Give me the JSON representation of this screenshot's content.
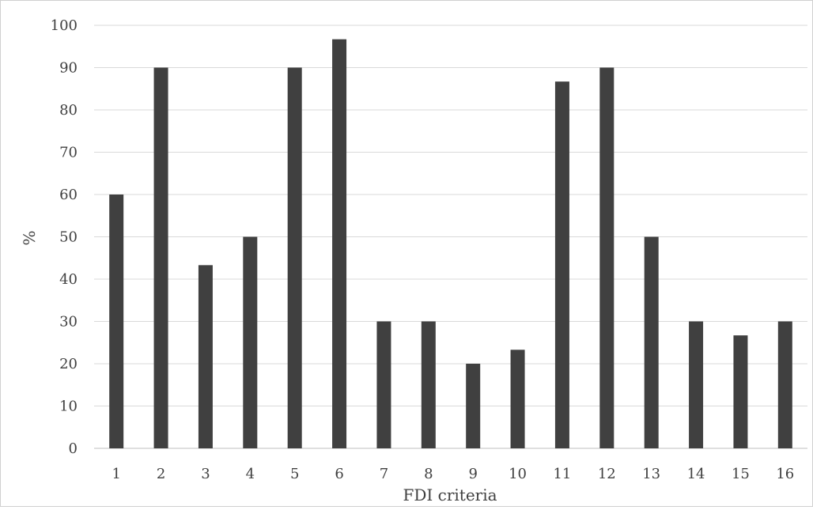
{
  "chart_data": {
    "type": "bar",
    "categories": [
      "1",
      "2",
      "3",
      "4",
      "5",
      "6",
      "7",
      "8",
      "9",
      "10",
      "11",
      "12",
      "13",
      "14",
      "15",
      "16"
    ],
    "values": [
      60,
      90,
      43.3,
      50,
      90,
      96.7,
      30,
      30,
      20,
      23.3,
      86.7,
      90,
      50,
      30,
      26.7,
      30
    ],
    "xlabel": "FDI criteria",
    "ylabel": "%",
    "ylim": [
      0,
      100
    ],
    "yticks": [
      0,
      10,
      20,
      30,
      40,
      50,
      60,
      70,
      80,
      90,
      100
    ],
    "grid": true,
    "legend": "none",
    "bar_color": "#404040",
    "grid_color": "#d9d9d9"
  }
}
